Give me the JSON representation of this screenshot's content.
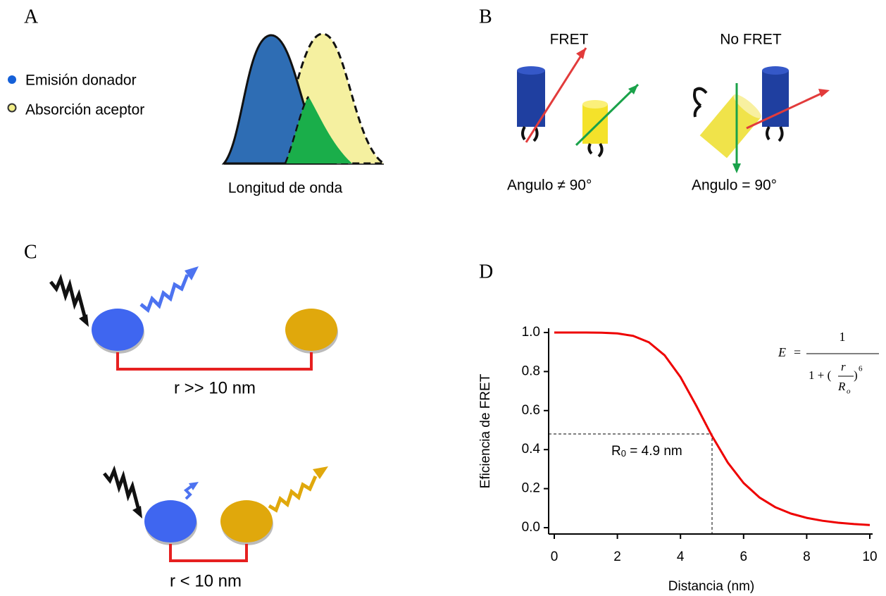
{
  "panels": [
    {
      "letter": "A",
      "legend": [
        "Emisión donador",
        "Absorción aceptor"
      ],
      "xlabel": "Longitud de onda"
    },
    {
      "letter": "B",
      "titles": [
        "FRET",
        "No FRET"
      ],
      "angles": [
        "Angulo ≠ 90°",
        "Angulo = 90°"
      ]
    },
    {
      "letter": "C",
      "distances": [
        "r >> 10 nm",
        "r < 10 nm"
      ]
    }
  ],
  "chart_data": {
    "type": "line",
    "panel_label": "D",
    "xlabel": "Distancia (nm)",
    "ylabel": "Eficiencia de FRET",
    "x": [
      0,
      0.5,
      1,
      1.5,
      2,
      2.5,
      3,
      3.5,
      4,
      4.5,
      5,
      5.5,
      6,
      6.5,
      7,
      7.5,
      8,
      8.5,
      9,
      9.5,
      10
    ],
    "series": [
      {
        "color": "#ee0000",
        "values": [
          1.0,
          1.0,
          0.9999,
          0.9992,
          0.9954,
          0.9827,
          0.95,
          0.8828,
          0.7717,
          0.625,
          0.4697,
          0.3333,
          0.2288,
          0.1551,
          0.1053,
          0.0722,
          0.0502,
          0.0354,
          0.0254,
          0.0185,
          0.0137
        ]
      }
    ],
    "xlim": [
      0,
      10
    ],
    "ylim": [
      0,
      1
    ],
    "xticks": [
      0,
      2,
      4,
      6,
      8,
      10
    ],
    "yticks": [
      {
        "value": 0,
        "label": "0.0"
      },
      0.2,
      0.4,
      0.6,
      0.8,
      {
        "value": 1,
        "label": "1.0"
      }
    ],
    "reference_point": {
      "x": 5,
      "y": 0.48
    },
    "reference_label": {
      "symbol": "R",
      "subscript": "0",
      "text": " = 4.9 nm"
    },
    "formula": {
      "lhs": "E",
      "equals": "=",
      "numerator": "1",
      "denominator": "1 + (",
      "r": "r",
      "R": "R",
      "sub": "o",
      "close": ")",
      "exponent": "6"
    }
  }
}
